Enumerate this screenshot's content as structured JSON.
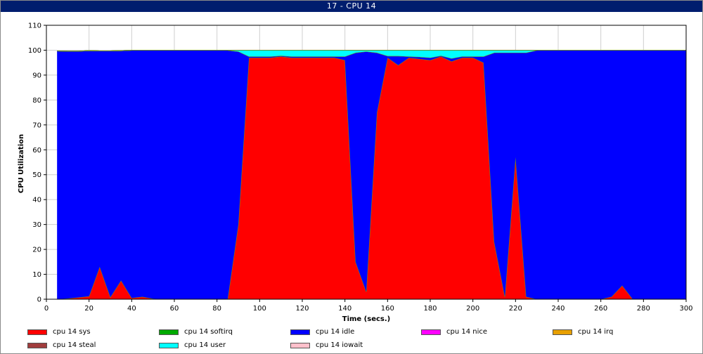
{
  "window": {
    "title": "17 - CPU 14"
  },
  "chart_data": {
    "type": "area",
    "stacked": true,
    "title": "",
    "xlabel": "Time (secs.)",
    "ylabel": "CPU Utilization",
    "xlim": [
      0,
      300
    ],
    "ylim": [
      0,
      110
    ],
    "xticks": [
      0,
      20,
      40,
      60,
      80,
      100,
      120,
      140,
      160,
      180,
      200,
      220,
      240,
      260,
      280,
      300
    ],
    "yticks": [
      0,
      10,
      20,
      30,
      40,
      50,
      60,
      70,
      80,
      90,
      100,
      110
    ],
    "grid": true,
    "legend_position": "bottom",
    "x": [
      5,
      10,
      15,
      20,
      25,
      30,
      35,
      40,
      45,
      50,
      55,
      60,
      65,
      70,
      75,
      80,
      85,
      90,
      95,
      100,
      105,
      110,
      115,
      120,
      125,
      130,
      135,
      140,
      145,
      150,
      155,
      160,
      165,
      170,
      175,
      180,
      185,
      190,
      195,
      200,
      205,
      210,
      215,
      220,
      225,
      230,
      235,
      240,
      245,
      250,
      255,
      260,
      265,
      270,
      275,
      280,
      285,
      290,
      295,
      300
    ],
    "series": [
      {
        "name": "cpu 14 sys",
        "color": "#ff0000",
        "values": [
          0,
          0.3,
          0.7,
          1.2,
          13,
          0.8,
          7.5,
          0.5,
          1,
          0.2,
          0,
          0,
          0,
          0,
          0,
          0,
          0,
          30,
          97,
          97,
          97,
          97.5,
          97,
          97,
          97,
          97,
          97,
          96,
          15,
          3,
          75,
          97,
          94,
          97,
          96.5,
          96,
          97.5,
          95.5,
          97,
          97,
          95,
          23,
          1,
          57,
          1,
          0,
          0,
          0,
          0,
          0,
          0,
          0,
          1,
          5.5,
          0,
          0,
          0,
          0,
          0,
          0
        ]
      },
      {
        "name": "cpu 14 softirq",
        "color": "#00aa00",
        "values": [
          0,
          0,
          0,
          0,
          0,
          0,
          0,
          0,
          0,
          0,
          0,
          0,
          0,
          0,
          0,
          0,
          0,
          0,
          0,
          0,
          0,
          0,
          0,
          0,
          0,
          0,
          0,
          0,
          0,
          0,
          0,
          0,
          0,
          0,
          0,
          0,
          0,
          0,
          0,
          0,
          0,
          0,
          0,
          0,
          0,
          0,
          0,
          0,
          0,
          0,
          0,
          0,
          0,
          0,
          0,
          0,
          0,
          0,
          0,
          0
        ]
      },
      {
        "name": "cpu 14 idle",
        "color": "#0000ff",
        "values": [
          99.7,
          99.3,
          98.9,
          98.6,
          86.7,
          98.9,
          92.3,
          99.5,
          99,
          99.8,
          100,
          100,
          100,
          100,
          100,
          100,
          100,
          69.5,
          0.5,
          0.5,
          0.5,
          0.3,
          0.5,
          0.5,
          0.5,
          0.5,
          0.5,
          1.5,
          84,
          96.5,
          24,
          0.7,
          3.7,
          0.5,
          0.8,
          1,
          0.3,
          1.2,
          0.5,
          0.5,
          2.5,
          76,
          98,
          42,
          98,
          100,
          100,
          100,
          100,
          100,
          100,
          100,
          99,
          94.5,
          100,
          100,
          100,
          100,
          100,
          100
        ]
      },
      {
        "name": "cpu 14 nice",
        "color": "#ff00ff",
        "values": [
          0,
          0,
          0,
          0,
          0,
          0,
          0,
          0,
          0,
          0,
          0,
          0,
          0,
          0,
          0,
          0,
          0,
          0,
          0,
          0,
          0,
          0,
          0,
          0,
          0,
          0,
          0,
          0,
          0,
          0,
          0,
          0,
          0,
          0,
          0,
          0,
          0,
          0,
          0,
          0,
          0,
          0,
          0,
          0,
          0,
          0,
          0,
          0,
          0,
          0,
          0,
          0,
          0,
          0,
          0,
          0,
          0,
          0,
          0,
          0
        ]
      },
      {
        "name": "cpu 14 irq",
        "color": "#e8a000",
        "values": [
          0,
          0,
          0,
          0,
          0,
          0,
          0,
          0,
          0,
          0,
          0,
          0,
          0,
          0,
          0,
          0,
          0,
          0,
          0,
          0,
          0,
          0,
          0,
          0,
          0,
          0,
          0,
          0,
          0,
          0,
          0,
          0,
          0,
          0,
          0,
          0,
          0,
          0,
          0,
          0,
          0,
          0,
          0,
          0,
          0,
          0,
          0,
          0,
          0,
          0,
          0,
          0,
          0,
          0,
          0,
          0,
          0,
          0,
          0,
          0
        ]
      },
      {
        "name": "cpu 14 steal",
        "color": "#a03c3c",
        "values": [
          0,
          0,
          0,
          0,
          0,
          0,
          0,
          0,
          0,
          0,
          0,
          0,
          0,
          0,
          0,
          0,
          0,
          0,
          0,
          0,
          0,
          0,
          0,
          0,
          0,
          0,
          0,
          0,
          0,
          0,
          0,
          0,
          0,
          0,
          0,
          0,
          0,
          0,
          0,
          0,
          0,
          0,
          0,
          0,
          0,
          0,
          0,
          0,
          0,
          0,
          0,
          0,
          0,
          0,
          0,
          0,
          0,
          0,
          0,
          0
        ]
      },
      {
        "name": "cpu 14 user",
        "color": "#00ffff",
        "values": [
          0,
          0,
          0,
          0,
          0,
          0,
          0,
          0,
          0,
          0,
          0,
          0,
          0,
          0,
          0,
          0,
          0,
          0.5,
          2.5,
          2.5,
          2.5,
          2.2,
          2.5,
          2.5,
          2.5,
          2.5,
          2.5,
          2.5,
          1,
          0.5,
          1,
          2.3,
          2.3,
          2.5,
          2.7,
          3,
          2.2,
          3.3,
          2.5,
          2.5,
          2.5,
          1,
          1,
          1,
          1,
          0,
          0,
          0,
          0,
          0,
          0,
          0,
          0,
          0,
          0,
          0,
          0,
          0,
          0,
          0
        ]
      },
      {
        "name": "cpu 14 iowait",
        "color": "#ffc0cb",
        "values": [
          0,
          0,
          0,
          0,
          0,
          0,
          0,
          0,
          0,
          0,
          0,
          0,
          0,
          0,
          0,
          0,
          0,
          0,
          0,
          0,
          0,
          0,
          0,
          0,
          0,
          0,
          0,
          0,
          0,
          0,
          0,
          0,
          0,
          0,
          0,
          0,
          0,
          0,
          0,
          0,
          0,
          0,
          0,
          0,
          0,
          0,
          0,
          0,
          0,
          0,
          0,
          0,
          0,
          0,
          0,
          0,
          0,
          0,
          0,
          0
        ]
      }
    ]
  }
}
